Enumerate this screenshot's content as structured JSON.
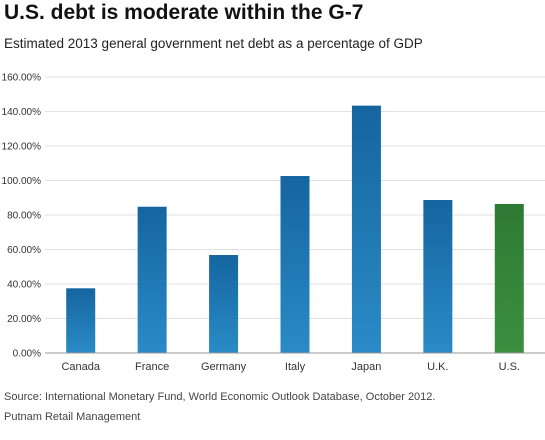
{
  "chart_data": {
    "type": "bar",
    "title": "U.S. debt is moderate within the G-7",
    "subtitle": "Estimated 2013 general government net debt as a percentage of GDP",
    "categories": [
      "Canada",
      "France",
      "Germany",
      "Italy",
      "Japan",
      "U.K.",
      "U.S."
    ],
    "values": [
      37.5,
      84.8,
      56.8,
      102.6,
      143.4,
      88.7,
      86.4
    ],
    "ylim": [
      0,
      160
    ],
    "yticks": [
      0,
      20,
      40,
      60,
      80,
      100,
      120,
      140,
      160
    ],
    "ytick_labels": [
      "0.00%",
      "20.00%",
      "40.00%",
      "60.00%",
      "80.00%",
      "100.00%",
      "120.00%",
      "140.00%",
      "160.00%"
    ],
    "xlabel": "",
    "ylabel": "",
    "grid": true,
    "legend": "none",
    "colors": {
      "default_bar_top": "#1565a0",
      "default_bar_bottom": "#2a8bc6",
      "highlight_bar_top": "#2e7a34",
      "highlight_bar_bottom": "#3b8f3f",
      "gridline": "#e0e0e0",
      "axis": "#999999"
    },
    "highlight_category": "U.S."
  },
  "source": "Source: International Monetary Fund, World Economic Outlook Database, October 2012.",
  "credit": "Putnam Retail Management"
}
